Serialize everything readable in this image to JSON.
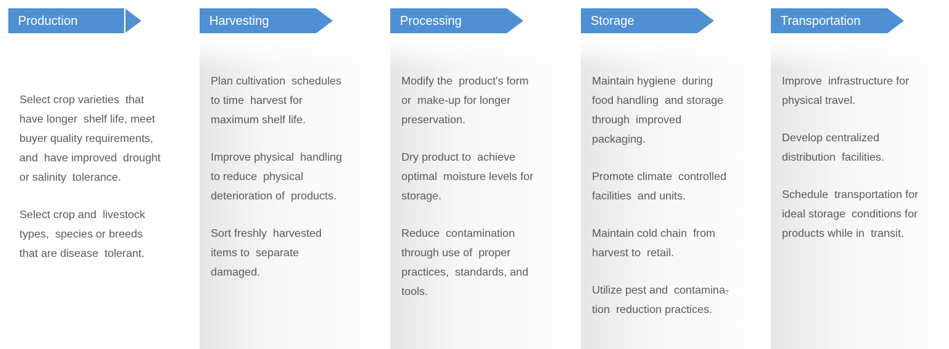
{
  "columns": [
    {
      "title": "Production",
      "paragraphs": [
        [
          "Select crop varieties  that",
          "have longer  shelf life, meet",
          "buyer quality requirements,",
          "and  have improved  drought",
          "or salinity  tolerance."
        ],
        [
          "Select crop and  livestock",
          "types,  species or breeds",
          "that are disease  tolerant."
        ]
      ]
    },
    {
      "title": "Harvesting",
      "paragraphs": [
        [
          "Plan cultivation  schedules",
          "to time  harvest for",
          "maximum shelf life."
        ],
        [
          "Improve physical  handling",
          "to reduce  physical",
          "deterioration of  products."
        ],
        [
          "Sort freshly  harvested",
          "items to  separate",
          "damaged."
        ]
      ]
    },
    {
      "title": "Processing",
      "paragraphs": [
        [
          "Modify the  product's form",
          "or  make-up for longer",
          "preservation."
        ],
        [
          "Dry product to  achieve",
          "optimal  moisture levels for",
          "storage."
        ],
        [
          "Reduce  contamination",
          "through use of  proper",
          "practices,  standards, and",
          "tools."
        ]
      ]
    },
    {
      "title": "Storage",
      "paragraphs": [
        [
          "Maintain hygiene  during",
          "food handling  and storage",
          "through  improved",
          "packaging."
        ],
        [
          "Promote climate  controlled",
          "facilities  and units."
        ],
        [
          "Maintain cold chain  from",
          "harvest to  retail."
        ],
        [
          "Utilize pest and  contamina-",
          "tion  reduction practices."
        ]
      ]
    },
    {
      "title": "Transportation",
      "paragraphs": [
        [
          "Improve  infrastructure for",
          "physical travel."
        ],
        [
          "Develop centralized",
          "distribution  facilities."
        ],
        [
          "Schedule  transportation for",
          "ideal storage  conditions for",
          "products while in  transit."
        ]
      ]
    }
  ]
}
